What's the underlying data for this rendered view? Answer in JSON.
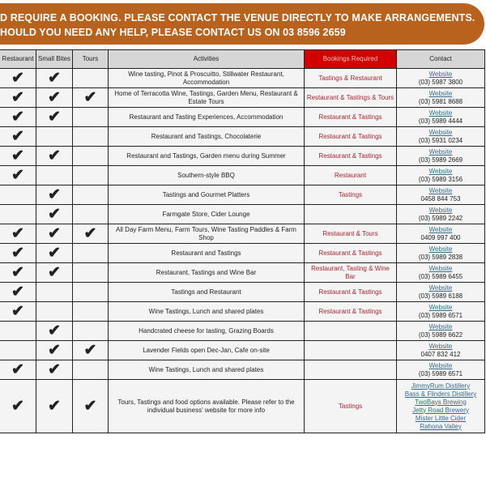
{
  "banner": {
    "line1": "D REQUIRE A BOOKING. PLEASE CONTACT THE VENUE DIRECTLY TO MAKE ARRANGEMENTS.",
    "line2": "HOULD YOU NEED ANY HELP, PLEASE CONTACT US ON 03 8596 2659"
  },
  "headers": {
    "restaurant": "Restaurant",
    "small_bites": "Small Bites",
    "tours": "Tours",
    "activities": "Activities",
    "bookings": "Bookings Required",
    "contact": "Contact"
  },
  "check": "✔",
  "rows": [
    {
      "r": true,
      "s": true,
      "t": false,
      "activities": "Wine tasting, Pinot & Proscuitto, Stillwater Restaurant, Accommodation",
      "booking": "Tastings & Restaurant",
      "links": [
        "Website"
      ],
      "phone": "(03) 5987 3800"
    },
    {
      "r": true,
      "s": true,
      "t": true,
      "activities": "Home of Terracotta Wine, Tastings, Garden Menu, Restaurant & Estate Tours",
      "booking": "Restaurant & Tastings & Tours",
      "links": [
        "Website"
      ],
      "phone": "(03) 5981 8688"
    },
    {
      "r": true,
      "s": true,
      "t": false,
      "activities": "Restaurant and Tasting Experiences, Accommodation",
      "booking": "Restaurant & Tastings",
      "links": [
        "Website"
      ],
      "phone": "(03) 5989 4444"
    },
    {
      "r": true,
      "s": false,
      "t": false,
      "activities": "Restaurant and Tastings, Chocolaterie",
      "booking": "Restaurant & Tastings",
      "links": [
        "Website"
      ],
      "phone": "(03) 5931 0234"
    },
    {
      "r": true,
      "s": true,
      "t": false,
      "activities": "Restaurant and Tastings, Garden menu during Summer",
      "booking": "Restaurant & Tastings",
      "links": [
        "Website"
      ],
      "phone": "(03) 5989 2669"
    },
    {
      "r": true,
      "s": false,
      "t": false,
      "activities": "Southern-style BBQ",
      "booking": "Restaurant",
      "links": [
        "Website"
      ],
      "phone": "(03) 5989 3156"
    },
    {
      "r": false,
      "s": true,
      "t": false,
      "activities": "Tastings and Gourmet Platters",
      "booking": "Tastings",
      "links": [
        "Website"
      ],
      "phone": "0458 844 753"
    },
    {
      "r": false,
      "s": true,
      "t": false,
      "activities": "Farmgate Store, Cider Lounge",
      "booking": "",
      "links": [
        "Website"
      ],
      "phone": "(03) 5989 2242"
    },
    {
      "r": true,
      "s": true,
      "t": true,
      "activities": "All Day Farm Menu, Farm Tours, Wine Tasting Paddles & Farm Shop",
      "booking": "Restaurant & Tours",
      "links": [
        "Website"
      ],
      "phone": "0409 997 400"
    },
    {
      "r": true,
      "s": true,
      "t": false,
      "activities": "Restaurant and Tastings",
      "booking": "Restaurant & Tastings",
      "links": [
        "Website"
      ],
      "phone": "(03) 5989 2838"
    },
    {
      "r": true,
      "s": true,
      "t": false,
      "activities": "Restaurant, Tastings and Wine Bar",
      "booking": "Restaurant, Tasting & Wine Bar",
      "links": [
        "Website"
      ],
      "phone": "(03) 5989 6455"
    },
    {
      "r": true,
      "s": false,
      "t": false,
      "activities": "Tastings and Restaurant",
      "booking": "Restaurant & Tastings",
      "links": [
        "Website"
      ],
      "phone": "(03) 5989 6188"
    },
    {
      "r": true,
      "s": false,
      "t": false,
      "activities": "Wine Tastings, Lunch and shared plates",
      "booking": "Restaurant & Tastings",
      "links": [
        "Website"
      ],
      "phone": "(03) 5989 6571"
    },
    {
      "r": false,
      "s": true,
      "t": false,
      "activities": "Handcrated cheese for tasting, Grazing Boards",
      "booking": "",
      "links": [
        "Website"
      ],
      "phone": "(03) 5989 6622"
    },
    {
      "r": false,
      "s": true,
      "t": true,
      "activities": "Lavender Fields open Dec-Jan, Cafe on-site",
      "booking": "",
      "links": [
        "Website"
      ],
      "phone": "0407 832 412"
    },
    {
      "r": true,
      "s": true,
      "t": false,
      "activities": "Wine Tastings, Lunch and shared plates",
      "booking": "",
      "links": [
        "Website"
      ],
      "phone": "(03) 5989 6571"
    },
    {
      "r": true,
      "s": true,
      "t": true,
      "activities": "Tours, Tastings and food options available. Please refer to the individual business' website for more info",
      "booking": "Tastings",
      "links": [
        "JimmyRum Distillery",
        "Bass & Flinders Distillery",
        "TwoBays Brewing",
        "Jetty Road Brewery",
        "Mister Little Cider",
        "Rahona Valley"
      ],
      "phone": ""
    }
  ]
}
